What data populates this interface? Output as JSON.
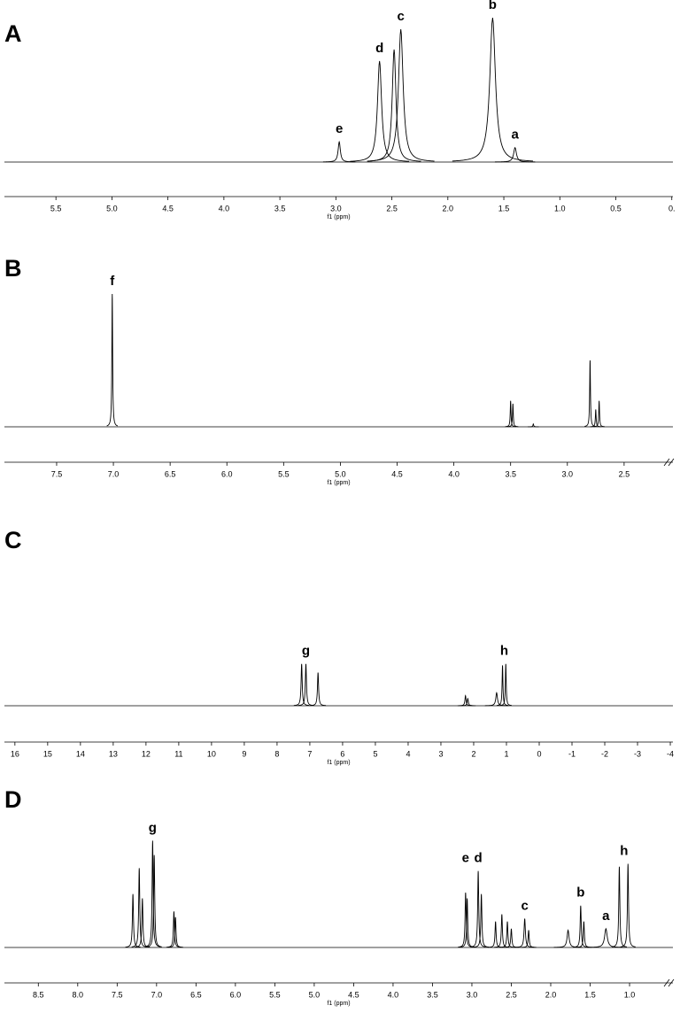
{
  "chart_data": [
    {
      "type": "spectrum",
      "label": "A",
      "xlabel": "f1 (ppm)",
      "xlim": [
        5.96,
        -0.01
      ],
      "ylim": [
        0,
        100
      ],
      "break": false,
      "xticks": [
        5.5,
        {
          "value": 5.0,
          "label": "5.0"
        },
        4.5,
        {
          "value": 4.0,
          "label": "4.0"
        },
        3.5,
        {
          "value": 3.0,
          "label": "3.0"
        },
        2.5,
        {
          "value": 2.0,
          "label": "2.0"
        },
        1.5,
        {
          "value": 1.0,
          "label": "1.0"
        },
        0.5,
        {
          "value": 0,
          "label": "0."
        }
      ],
      "peaks": [
        2.97,
        2.61,
        2.48,
        2.42,
        1.6,
        1.4
      ],
      "values": [
        14,
        70,
        78,
        92,
        100,
        10
      ],
      "widths": [
        0.012,
        0.022,
        0.02,
        0.025,
        0.03,
        0.015
      ],
      "annotations": [
        {
          "text": "e",
          "x": 2.97
        },
        {
          "text": "d",
          "x": 2.61
        },
        {
          "text": "c",
          "x": 2.42
        },
        {
          "text": "b",
          "x": 1.6
        },
        {
          "text": "a",
          "x": 1.4
        }
      ]
    },
    {
      "type": "spectrum",
      "label": "B",
      "xlabel": "f1 (ppm)",
      "xlim": [
        7.96,
        2.07
      ],
      "ylim": [
        0,
        100
      ],
      "break": true,
      "xticks": [
        7.5,
        {
          "value": 7.0,
          "label": "7.0"
        },
        6.5,
        {
          "value": 6.0,
          "label": "6.0"
        },
        5.5,
        {
          "value": 5.0,
          "label": "5.0"
        },
        4.5,
        {
          "value": 4.0,
          "label": "4.0"
        },
        3.5,
        {
          "value": 3.0,
          "label": "3.0"
        },
        2.5
      ],
      "peaks": [
        7.01,
        3.5,
        3.48,
        3.3,
        2.8,
        2.75,
        2.72
      ],
      "values": [
        92,
        18,
        16,
        2,
        46,
        12,
        18
      ],
      "widths": [
        0.004,
        0.004,
        0.004,
        0.004,
        0.004,
        0.004,
        0.004
      ],
      "annotations": [
        {
          "text": "f",
          "x": 7.01
        }
      ]
    },
    {
      "type": "spectrum",
      "label": "C",
      "xlabel": "f1 (ppm)",
      "xlim": [
        16.32,
        -4.08
      ],
      "ylim": [
        0,
        100
      ],
      "break": false,
      "xticks": [
        16,
        15,
        14,
        13,
        12,
        11,
        10,
        9,
        8,
        7,
        6,
        5,
        4,
        3,
        2,
        1,
        0,
        -1,
        -2,
        -3,
        -4
      ],
      "peaks": [
        7.25,
        7.12,
        6.75,
        2.25,
        2.18,
        1.3,
        1.12,
        1.02
      ],
      "values": [
        29,
        29,
        23,
        7,
        5,
        9,
        28,
        29
      ],
      "widths": [
        0.02,
        0.02,
        0.02,
        0.02,
        0.02,
        0.03,
        0.015,
        0.015
      ],
      "annotations": [
        {
          "text": "g",
          "x": 7.12
        },
        {
          "text": "h",
          "x": 1.07
        }
      ]
    },
    {
      "type": "spectrum",
      "label": "D",
      "xlabel": "f1 (ppm)",
      "xlim": [
        8.93,
        0.45
      ],
      "ylim": [
        0,
        100
      ],
      "break": true,
      "xticks": [
        8.5,
        {
          "value": 8.0,
          "label": "8.0"
        },
        7.5,
        {
          "value": 7.0,
          "label": "7.0"
        },
        6.5,
        {
          "value": 6.0,
          "label": "6.0"
        },
        5.5,
        {
          "value": 5.0,
          "label": "5.0"
        },
        4.5,
        {
          "value": 4.0,
          "label": "4.0"
        },
        3.5,
        {
          "value": 3.0,
          "label": "3.0"
        },
        2.5,
        {
          "value": 2.0,
          "label": "2.0"
        },
        1.5,
        {
          "value": 1.0,
          "label": "1.0"
        }
      ],
      "peaks": [
        7.3,
        7.22,
        7.18,
        7.05,
        7.03,
        6.78,
        6.76,
        3.08,
        3.06,
        2.92,
        2.88,
        2.7,
        2.62,
        2.55,
        2.5,
        2.33,
        2.28,
        1.78,
        1.62,
        1.58,
        1.3,
        1.13,
        1.02
      ],
      "values": [
        37,
        55,
        34,
        74,
        64,
        25,
        21,
        38,
        34,
        53,
        37,
        18,
        23,
        18,
        13,
        20,
        12,
        12,
        29,
        18,
        13,
        56,
        58
      ],
      "widths": [
        0.008,
        0.008,
        0.008,
        0.008,
        0.008,
        0.008,
        0.008,
        0.008,
        0.008,
        0.008,
        0.008,
        0.008,
        0.008,
        0.008,
        0.008,
        0.01,
        0.008,
        0.015,
        0.008,
        0.008,
        0.02,
        0.008,
        0.008
      ],
      "annotations": [
        {
          "text": "g",
          "x": 7.05
        },
        {
          "text": "e",
          "x": 3.08
        },
        {
          "text": "d",
          "x": 2.92
        },
        {
          "text": "c",
          "x": 2.33
        },
        {
          "text": "b",
          "x": 1.62
        },
        {
          "text": "a",
          "x": 1.3
        },
        {
          "text": "h",
          "x": 1.07
        }
      ]
    }
  ]
}
